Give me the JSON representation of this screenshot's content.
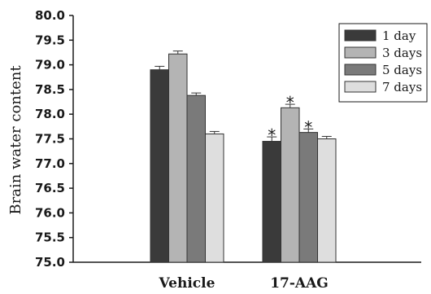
{
  "chart_data": {
    "type": "bar",
    "categories": [
      "Vehicle",
      "17-AAG"
    ],
    "series": [
      {
        "name": "1 day",
        "values": [
          78.9,
          77.45
        ],
        "errors": [
          0.07,
          0.09
        ],
        "color": "#3a3a3a"
      },
      {
        "name": "3 days",
        "values": [
          79.22,
          78.13
        ],
        "errors": [
          0.06,
          0.07
        ],
        "color": "#b4b4b4"
      },
      {
        "name": "5 days",
        "values": [
          78.38,
          77.63
        ],
        "errors": [
          0.05,
          0.07
        ],
        "color": "#7a7a7a"
      },
      {
        "name": "7 days",
        "values": [
          77.6,
          77.5
        ],
        "errors": [
          0.05,
          0.05
        ],
        "color": "#dedede"
      }
    ],
    "significance": [
      [
        false,
        true
      ],
      [
        false,
        true
      ],
      [
        false,
        true
      ],
      [
        false,
        false
      ]
    ],
    "significance_marker": "*",
    "xlabel": "",
    "ylabel": "Brain water content",
    "ylim": [
      75.0,
      80.0
    ],
    "yticks": [
      "75.0",
      "75.5",
      "76.0",
      "76.5",
      "77.0",
      "77.5",
      "78.0",
      "78.5",
      "79.0",
      "79.5",
      "80.0"
    ],
    "grid": false,
    "legend_position": "top-right"
  }
}
